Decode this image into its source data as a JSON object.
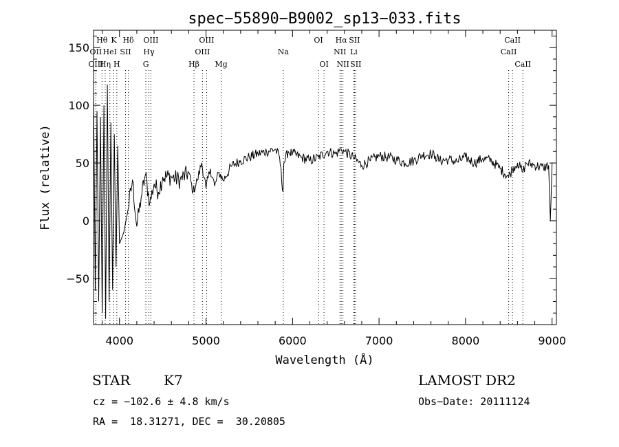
{
  "chart_data": {
    "type": "line",
    "title": "spec−55890−B9002_sp13−033.fits",
    "xlabel": "Wavelength (Å)",
    "ylabel": "Flux (relative)",
    "xlim": [
      3700,
      9050
    ],
    "ylim": [
      -90,
      165
    ],
    "xticks": [
      4000,
      5000,
      6000,
      7000,
      8000,
      9000
    ],
    "xtick_labels": [
      "4000",
      "5000",
      "6000",
      "7000",
      "8000",
      "9000"
    ],
    "yticks": [
      -50,
      0,
      50,
      100,
      150
    ],
    "ytick_labels": [
      "−50",
      "0",
      "50",
      "100",
      "150"
    ],
    "grid": false,
    "series": [
      {
        "name": "flux",
        "x": [
          3700,
          3720,
          3740,
          3760,
          3780,
          3800,
          3820,
          3840,
          3860,
          3880,
          3900,
          3920,
          3940,
          3960,
          3980,
          4000,
          4050,
          4100,
          4150,
          4200,
          4250,
          4300,
          4350,
          4400,
          4450,
          4500,
          4600,
          4700,
          4800,
          4850,
          4900,
          4950,
          5000,
          5050,
          5100,
          5150,
          5200,
          5300,
          5400,
          5500,
          5600,
          5700,
          5800,
          5850,
          5890,
          5900,
          5950,
          6000,
          6100,
          6200,
          6300,
          6400,
          6500,
          6563,
          6600,
          6700,
          6800,
          6900,
          7000,
          7100,
          7200,
          7300,
          7400,
          7500,
          7600,
          7650,
          7700,
          7800,
          7900,
          8000,
          8100,
          8200,
          8300,
          8400,
          8498,
          8542,
          8600,
          8662,
          8700,
          8800,
          8900,
          8960,
          8980,
          9000
        ],
        "y": [
          110,
          -60,
          95,
          -70,
          90,
          -80,
          100,
          -85,
          118,
          -70,
          85,
          -60,
          75,
          -40,
          65,
          -20,
          -10,
          10,
          35,
          -5,
          20,
          40,
          15,
          32,
          25,
          38,
          38,
          35,
          42,
          25,
          35,
          50,
          28,
          45,
          30,
          42,
          35,
          48,
          52,
          55,
          58,
          60,
          62,
          55,
          25,
          50,
          60,
          58,
          55,
          52,
          55,
          60,
          58,
          62,
          60,
          55,
          48,
          52,
          56,
          55,
          53,
          50,
          52,
          57,
          58,
          56,
          52,
          53,
          51,
          55,
          50,
          54,
          52,
          45,
          38,
          45,
          50,
          42,
          50,
          48,
          46,
          48,
          0,
          50
        ]
      }
    ],
    "lines": [
      {
        "label": "Hθ",
        "x": 3798,
        "row": 1
      },
      {
        "label": "OII",
        "x": 3727,
        "row": 2
      },
      {
        "label": "OIII",
        "x": 3727,
        "row": 3
      },
      {
        "label": "K",
        "x": 3934,
        "row": 1
      },
      {
        "label": "HeI",
        "x": 3889,
        "row": 2
      },
      {
        "label": "Hη",
        "x": 3835,
        "row": 3
      },
      {
        "label": "SII",
        "x": 4070,
        "row": 2
      },
      {
        "label": "H",
        "x": 3969,
        "row": 3
      },
      {
        "label": "Hδ",
        "x": 4102,
        "row": 1
      },
      {
        "label": "OIII",
        "x": 4363,
        "row": 1
      },
      {
        "label": "Hγ",
        "x": 4340,
        "row": 2
      },
      {
        "label": "G",
        "x": 4305,
        "row": 3
      },
      {
        "label": "OIII",
        "x": 5007,
        "row": 1
      },
      {
        "label": "OIII",
        "x": 4959,
        "row": 2
      },
      {
        "label": "Hβ",
        "x": 4861,
        "row": 3
      },
      {
        "label": "Mg",
        "x": 5175,
        "row": 3
      },
      {
        "label": "Na",
        "x": 5893,
        "row": 2
      },
      {
        "label": "OI",
        "x": 6300,
        "row": 1
      },
      {
        "label": "OI",
        "x": 6364,
        "row": 3
      },
      {
        "label": "Hα",
        "x": 6563,
        "row": 1
      },
      {
        "label": "SII",
        "x": 6716,
        "row": 1
      },
      {
        "label": "NII",
        "x": 6548,
        "row": 2
      },
      {
        "label": "Li",
        "x": 6708,
        "row": 2
      },
      {
        "label": "NII",
        "x": 6583,
        "row": 3
      },
      {
        "label": "SII",
        "x": 6731,
        "row": 3
      },
      {
        "label": "CaII",
        "x": 8542,
        "row": 1
      },
      {
        "label": "CaII",
        "x": 8498,
        "row": 2
      },
      {
        "label": "CaII",
        "x": 8662,
        "row": 3
      }
    ]
  },
  "info": {
    "class_label": "STAR",
    "subclass": "K7",
    "survey": "LAMOST DR2",
    "redshift_line": "cz = −102.6 ± 4.8 km/s",
    "obs_date": "Obs−Date: 20111124",
    "coords": "RA =  18.31271, DEC =  30.20805"
  }
}
